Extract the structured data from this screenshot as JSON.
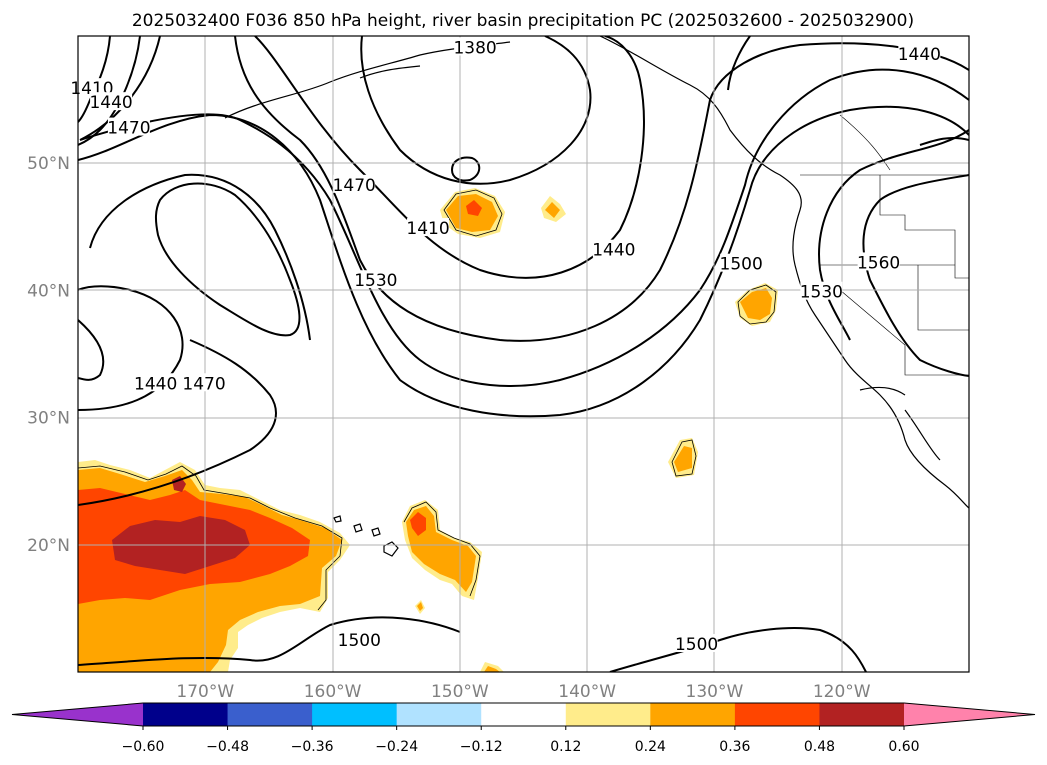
{
  "chart_data": {
    "type": "contour",
    "title": "2025032400 F036 850 hPa height, river basin precipitation PC (2025032600 - 2025032900)",
    "map": {
      "lon_range": [
        -180,
        -110
      ],
      "lat_range": [
        10,
        60
      ],
      "lon_ticks": [
        -170,
        -160,
        -150,
        -140,
        -130,
        -120
      ],
      "lon_tick_labels": [
        "170°W",
        "160°W",
        "150°W",
        "140°W",
        "130°W",
        "120°W"
      ],
      "lat_ticks": [
        20,
        30,
        40,
        50
      ],
      "lat_tick_labels": [
        "20°N",
        "30°N",
        "40°N",
        "50°N"
      ],
      "grid": true,
      "tick_color": "#808080"
    },
    "height_contour_labels": [
      {
        "text": "1380",
        "lon": -148.8,
        "lat": 59.1
      },
      {
        "text": "1410",
        "lon": -178.9,
        "lat": 55.9
      },
      {
        "text": "1440",
        "lon": -177.4,
        "lat": 54.8
      },
      {
        "text": "1470",
        "lon": -176.0,
        "lat": 52.8
      },
      {
        "text": "1470",
        "lon": -158.3,
        "lat": 48.3
      },
      {
        "text": "1410",
        "lon": -152.5,
        "lat": 44.9
      },
      {
        "text": "1530",
        "lon": -156.6,
        "lat": 40.8
      },
      {
        "text": "1440",
        "lon": -137.9,
        "lat": 43.2
      },
      {
        "text": "1500",
        "lon": -127.9,
        "lat": 42.1
      },
      {
        "text": "1530",
        "lon": -121.6,
        "lat": 39.9
      },
      {
        "text": "1560",
        "lon": -117.1,
        "lat": 42.2
      },
      {
        "text": "1440",
        "lon": -113.9,
        "lat": 58.6
      },
      {
        "text": "1440",
        "lon": -173.9,
        "lat": 32.7
      },
      {
        "text": "1470",
        "lon": -170.1,
        "lat": 32.7
      },
      {
        "text": "1500",
        "lon": -157.9,
        "lat": 12.5
      },
      {
        "text": "1500",
        "lon": -131.4,
        "lat": 12.2
      }
    ],
    "colorbar": {
      "levels": [
        -0.6,
        -0.48,
        -0.36,
        -0.24,
        -0.12,
        0.12,
        0.24,
        0.36,
        0.48,
        0.6
      ],
      "tick_labels": [
        "−0.60",
        "−0.48",
        "−0.36",
        "−0.24",
        "−0.12",
        "0.12",
        "0.24",
        "0.36",
        "0.48",
        "0.60"
      ],
      "colors": [
        "#9932cc",
        "#00008b",
        "#3a5fcd",
        "#00bfff",
        "#b0e2ff",
        "#ffffff",
        "#ffec8b",
        "#ffa500",
        "#ff4500",
        "#b22222",
        "#ff82ab"
      ],
      "extend": "both",
      "orientation": "horizontal"
    }
  }
}
